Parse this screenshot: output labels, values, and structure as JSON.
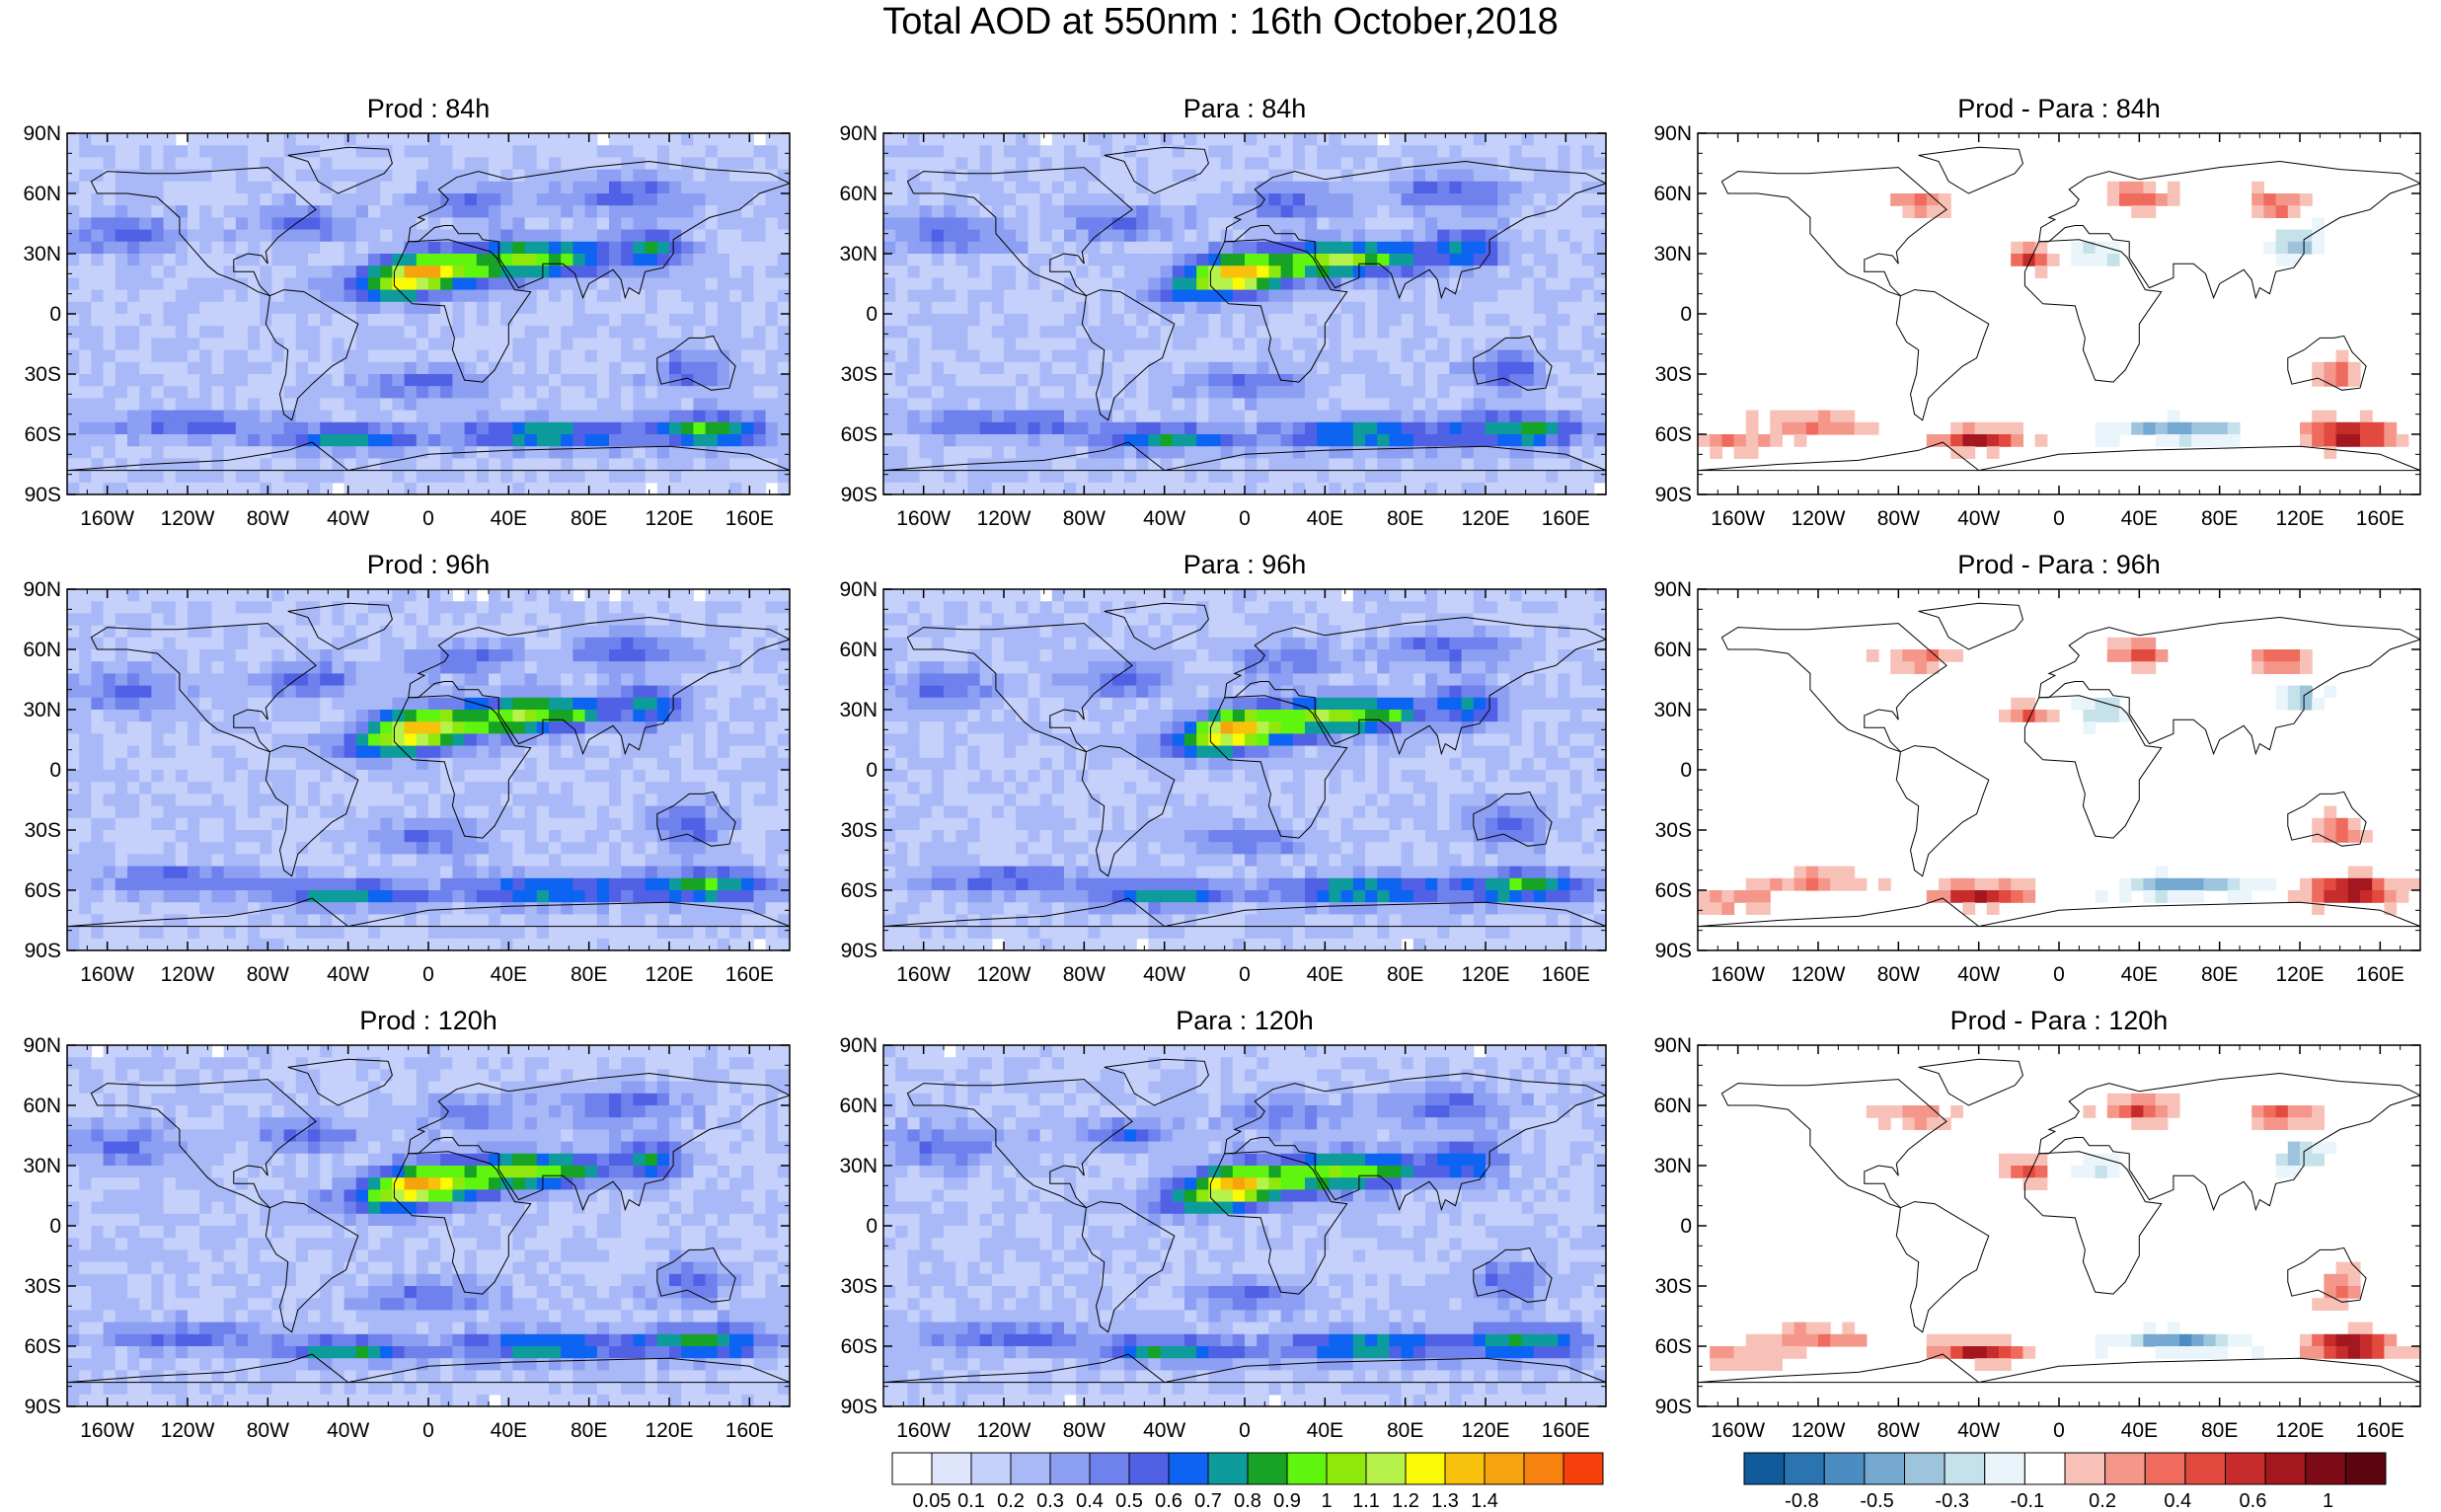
{
  "title": "Total AOD at 550nm : 16th October,2018",
  "chart_data": {
    "type": "heatmap",
    "title": "Total AOD at 550nm : 16th October,2018",
    "xlim": [
      -180,
      180
    ],
    "ylim": [
      -90,
      90
    ],
    "x_ticks": [
      {
        "value": -160,
        "label": "160W"
      },
      {
        "value": -120,
        "label": "120W"
      },
      {
        "value": -80,
        "label": "80W"
      },
      {
        "value": -40,
        "label": "40W"
      },
      {
        "value": 0,
        "label": "0"
      },
      {
        "value": 40,
        "label": "40E"
      },
      {
        "value": 80,
        "label": "80E"
      },
      {
        "value": 120,
        "label": "120E"
      },
      {
        "value": 160,
        "label": "160E"
      }
    ],
    "y_ticks": [
      {
        "value": 90,
        "label": "90N"
      },
      {
        "value": 60,
        "label": "60N"
      },
      {
        "value": 30,
        "label": "30N"
      },
      {
        "value": 0,
        "label": "0"
      },
      {
        "value": -30,
        "label": "30S"
      },
      {
        "value": -60,
        "label": "60S"
      },
      {
        "value": -90,
        "label": "90S"
      }
    ],
    "panels": [
      {
        "title": "Prod : 84h",
        "kind": "aod",
        "lead": 84
      },
      {
        "title": "Para : 84h",
        "kind": "aod",
        "lead": 84
      },
      {
        "title": "Prod - Para : 84h",
        "kind": "diff",
        "lead": 84
      },
      {
        "title": "Prod : 96h",
        "kind": "aod",
        "lead": 96
      },
      {
        "title": "Para : 96h",
        "kind": "aod",
        "lead": 96
      },
      {
        "title": "Prod - Para : 96h",
        "kind": "diff",
        "lead": 96
      },
      {
        "title": "Prod : 120h",
        "kind": "aod",
        "lead": 120
      },
      {
        "title": "Para : 120h",
        "kind": "aod",
        "lead": 120
      },
      {
        "title": "Prod - Para : 120h",
        "kind": "diff",
        "lead": 120
      }
    ],
    "aod_colorbar": {
      "colors": [
        "#ffffff",
        "#dfe6fc",
        "#c5d0fb",
        "#a9b9f7",
        "#8c9ff2",
        "#6f81ec",
        "#5161e6",
        "#0d63f2",
        "#0d9b9b",
        "#16a326",
        "#5ff50e",
        "#8fe80c",
        "#b6f24a",
        "#fafa06",
        "#f8c10c",
        "#f7a30d",
        "#f7820f",
        "#f6410d"
      ],
      "labels": [
        "0.05",
        "0.1",
        "0.2",
        "0.3",
        "0.4",
        "0.5",
        "0.6",
        "0.7",
        "0.8",
        "0.9",
        "1",
        "1.1",
        "1.2",
        "1.3",
        "1.4"
      ]
    },
    "diff_colorbar": {
      "colors": [
        "#0e5a9b",
        "#2b74b2",
        "#4b8dc2",
        "#74a8d0",
        "#9dc4dc",
        "#c5e2ea",
        "#e9f5fa",
        "#ffffff",
        "#f8c1b8",
        "#f4968a",
        "#ee6b5d",
        "#e34a3f",
        "#c62c2c",
        "#a4171f",
        "#7d0b15",
        "#5c0510"
      ],
      "labels": [
        "-0.8",
        "-0.5",
        "-0.3",
        "-0.1",
        "0.2",
        "0.4",
        "0.6",
        "1"
      ]
    },
    "colors": {
      "land_outline": "#000000",
      "missing": "#ffffff"
    }
  }
}
